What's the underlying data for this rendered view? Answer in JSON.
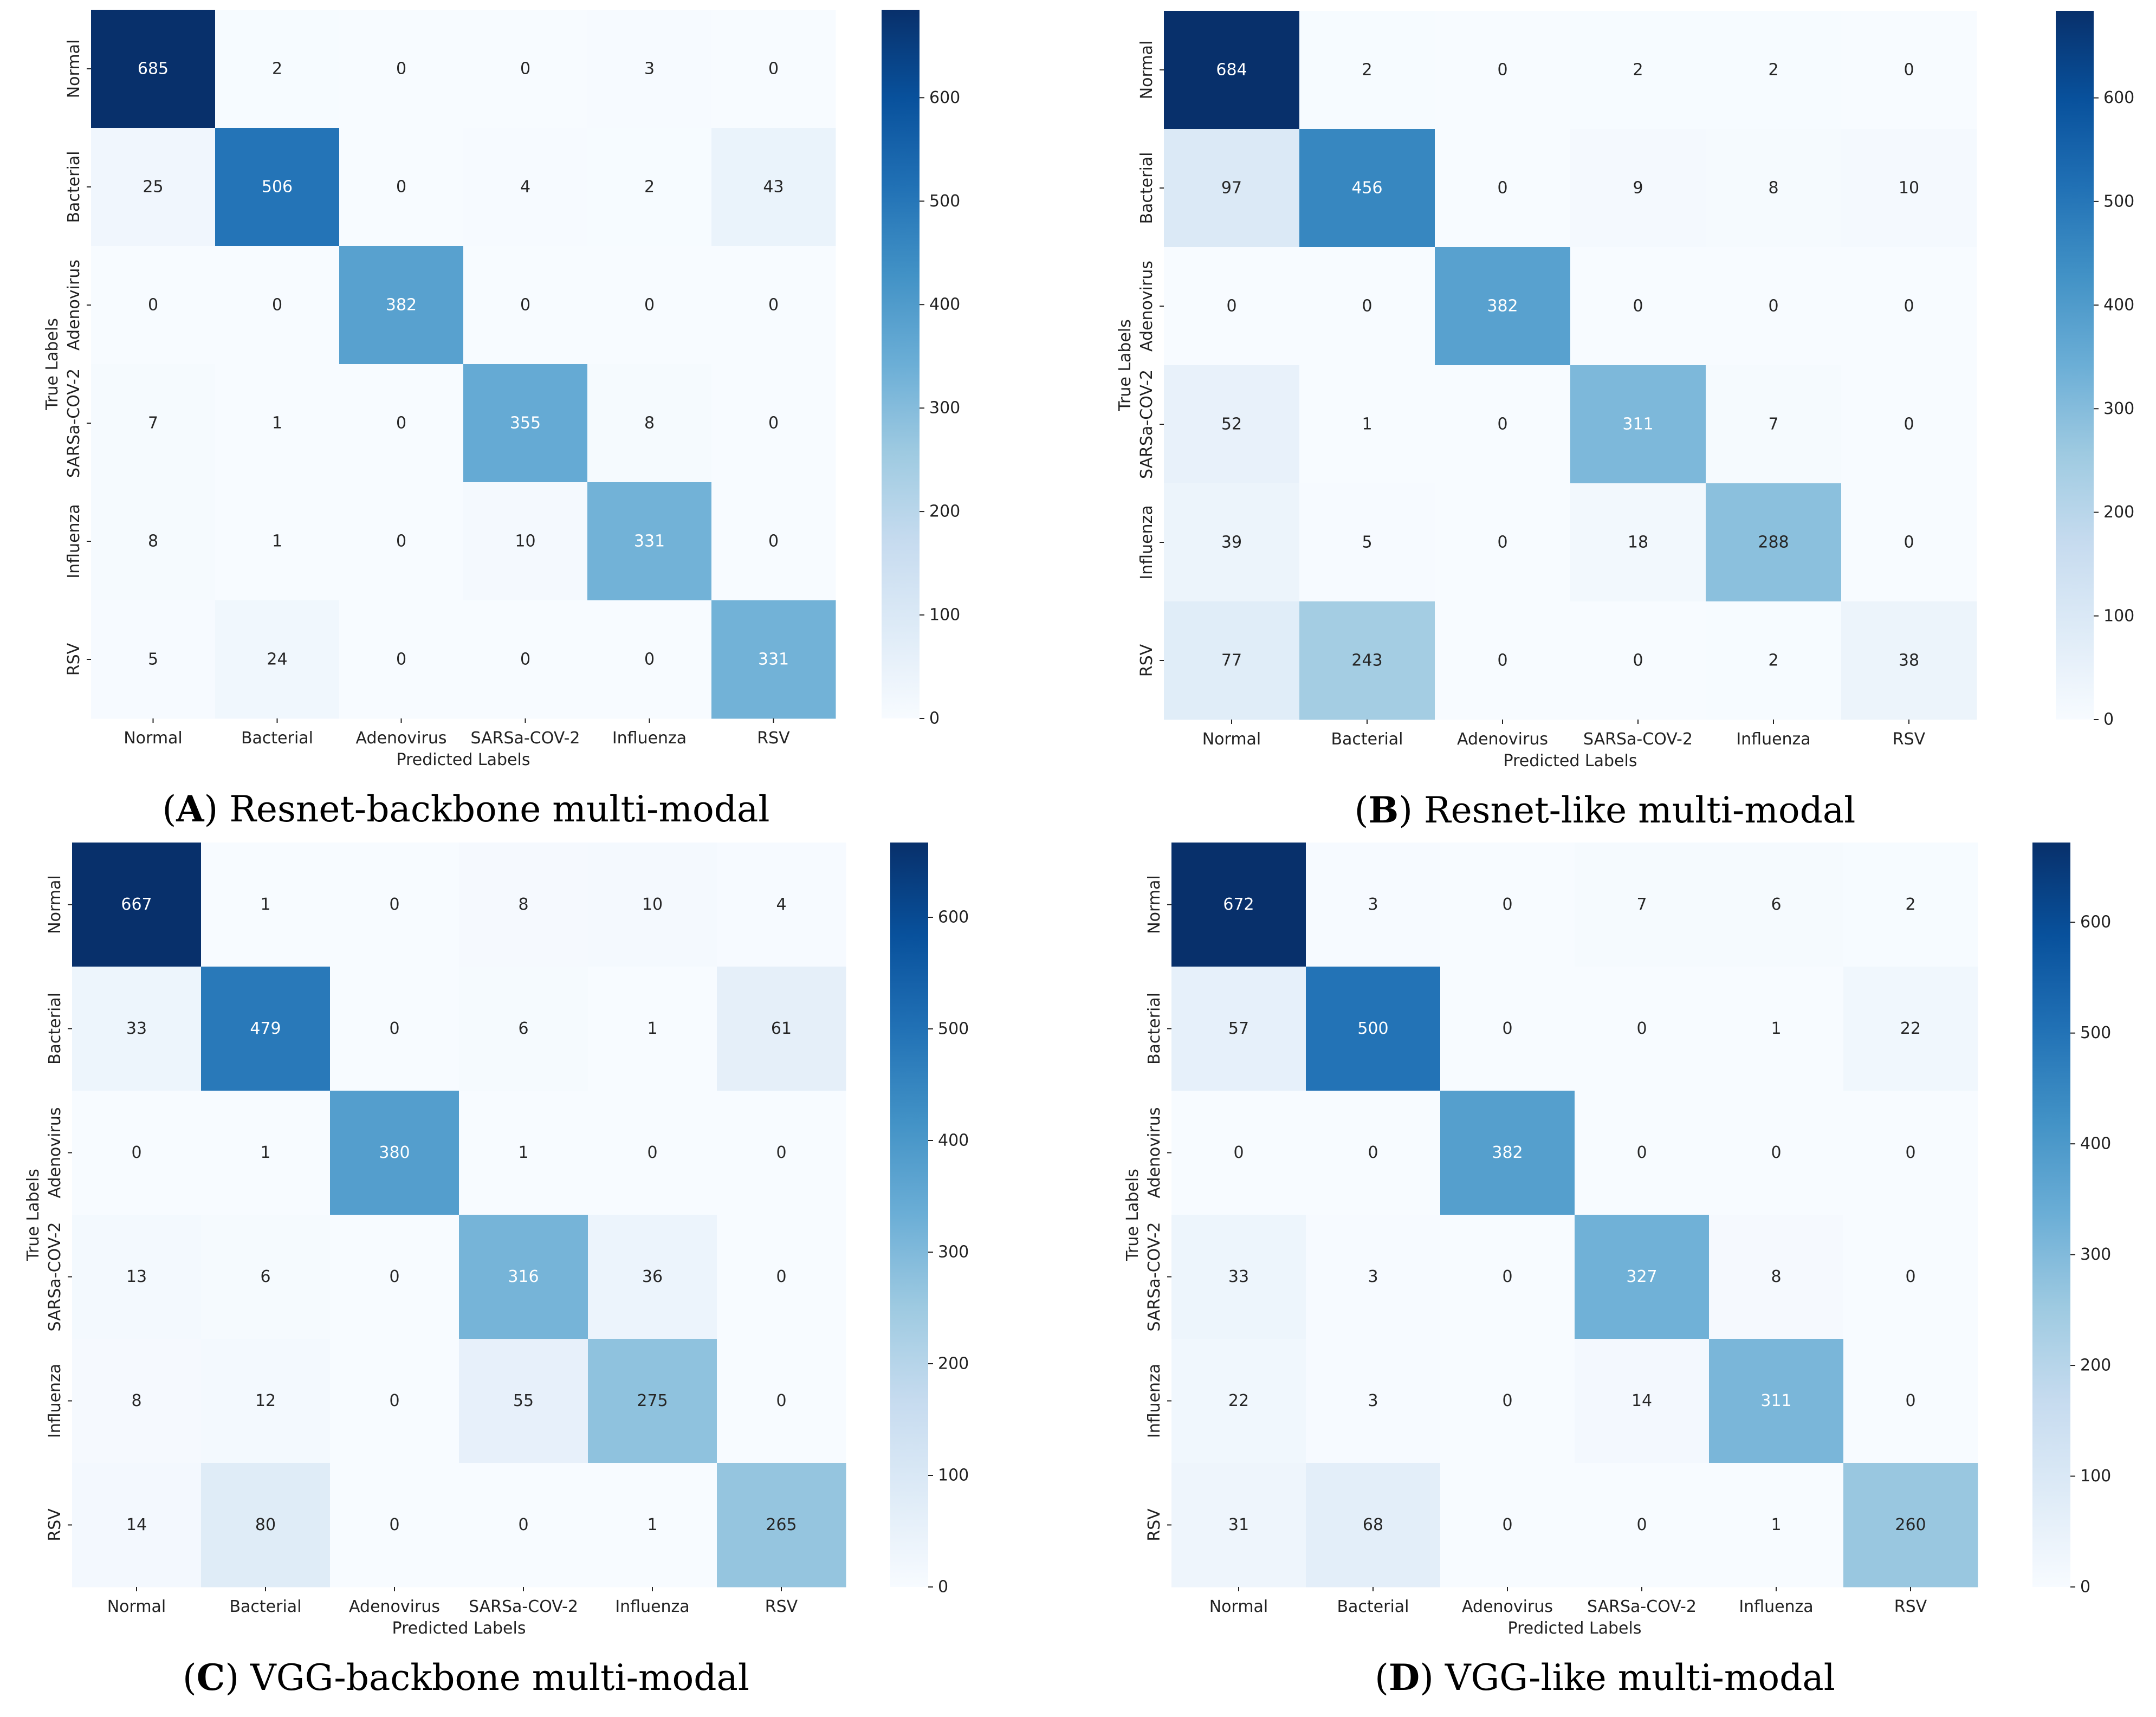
{
  "labels": [
    "Normal",
    "Bacterial",
    "Adenovirus",
    "SARSa-COV-2",
    "Influenza",
    "RSV"
  ],
  "xlabel": "Predicted Labels",
  "ylabel": "True Labels",
  "colors": {
    "low": "#f7fbff",
    "mid": "#6baed6",
    "high": "#08306b"
  },
  "chart_data": [
    {
      "type": "heatmap",
      "panel": "A",
      "caption_letter": "A",
      "caption_text": "Resnet-backbone multi-modal",
      "xlabel": "Predicted Labels",
      "ylabel": "True Labels",
      "categories": [
        "Normal",
        "Bacterial",
        "Adenovirus",
        "SARSa-COV-2",
        "Influenza",
        "RSV"
      ],
      "matrix": [
        [
          685,
          2,
          0,
          0,
          3,
          0
        ],
        [
          25,
          506,
          0,
          4,
          2,
          43
        ],
        [
          0,
          0,
          382,
          0,
          0,
          0
        ],
        [
          7,
          1,
          0,
          355,
          8,
          0
        ],
        [
          8,
          1,
          0,
          10,
          331,
          0
        ],
        [
          5,
          24,
          0,
          0,
          0,
          331
        ]
      ],
      "vmin": 0,
      "vmax": 685,
      "colorbar_ticks": [
        0,
        100,
        200,
        300,
        400,
        500,
        600
      ]
    },
    {
      "type": "heatmap",
      "panel": "B",
      "caption_letter": "B",
      "caption_text": "Resnet-like multi-modal",
      "xlabel": "Predicted Labels",
      "ylabel": "True Labels",
      "categories": [
        "Normal",
        "Bacterial",
        "Adenovirus",
        "SARSa-COV-2",
        "Influenza",
        "RSV"
      ],
      "matrix": [
        [
          684,
          2,
          0,
          2,
          2,
          0
        ],
        [
          97,
          456,
          0,
          9,
          8,
          10
        ],
        [
          0,
          0,
          382,
          0,
          0,
          0
        ],
        [
          52,
          1,
          0,
          311,
          7,
          0
        ],
        [
          39,
          5,
          0,
          18,
          288,
          0
        ],
        [
          77,
          243,
          0,
          0,
          2,
          38
        ]
      ],
      "vmin": 0,
      "vmax": 684,
      "colorbar_ticks": [
        0,
        100,
        200,
        300,
        400,
        500,
        600
      ]
    },
    {
      "type": "heatmap",
      "panel": "C",
      "caption_letter": "C",
      "caption_text": "VGG-backbone multi-modal",
      "xlabel": "Predicted Labels",
      "ylabel": "True Labels",
      "categories": [
        "Normal",
        "Bacterial",
        "Adenovirus",
        "SARSa-COV-2",
        "Influenza",
        "RSV"
      ],
      "matrix": [
        [
          667,
          1,
          0,
          8,
          10,
          4
        ],
        [
          33,
          479,
          0,
          6,
          1,
          61
        ],
        [
          0,
          1,
          380,
          1,
          0,
          0
        ],
        [
          13,
          6,
          0,
          316,
          36,
          0
        ],
        [
          8,
          12,
          0,
          55,
          275,
          0
        ],
        [
          14,
          80,
          0,
          0,
          1,
          265
        ]
      ],
      "vmin": 0,
      "vmax": 667,
      "colorbar_ticks": [
        0,
        100,
        200,
        300,
        400,
        500,
        600
      ]
    },
    {
      "type": "heatmap",
      "panel": "D",
      "caption_letter": "D",
      "caption_text": "VGG-like multi-modal",
      "xlabel": "Predicted Labels",
      "ylabel": "True Labels",
      "categories": [
        "Normal",
        "Bacterial",
        "Adenovirus",
        "SARSa-COV-2",
        "Influenza",
        "RSV"
      ],
      "matrix": [
        [
          672,
          3,
          0,
          7,
          6,
          2
        ],
        [
          57,
          500,
          0,
          0,
          1,
          22
        ],
        [
          0,
          0,
          382,
          0,
          0,
          0
        ],
        [
          33,
          3,
          0,
          327,
          8,
          0
        ],
        [
          22,
          3,
          0,
          14,
          311,
          0
        ],
        [
          31,
          68,
          0,
          0,
          1,
          260
        ]
      ],
      "vmin": 0,
      "vmax": 672,
      "colorbar_ticks": [
        0,
        100,
        200,
        300,
        400,
        500,
        600
      ]
    }
  ]
}
